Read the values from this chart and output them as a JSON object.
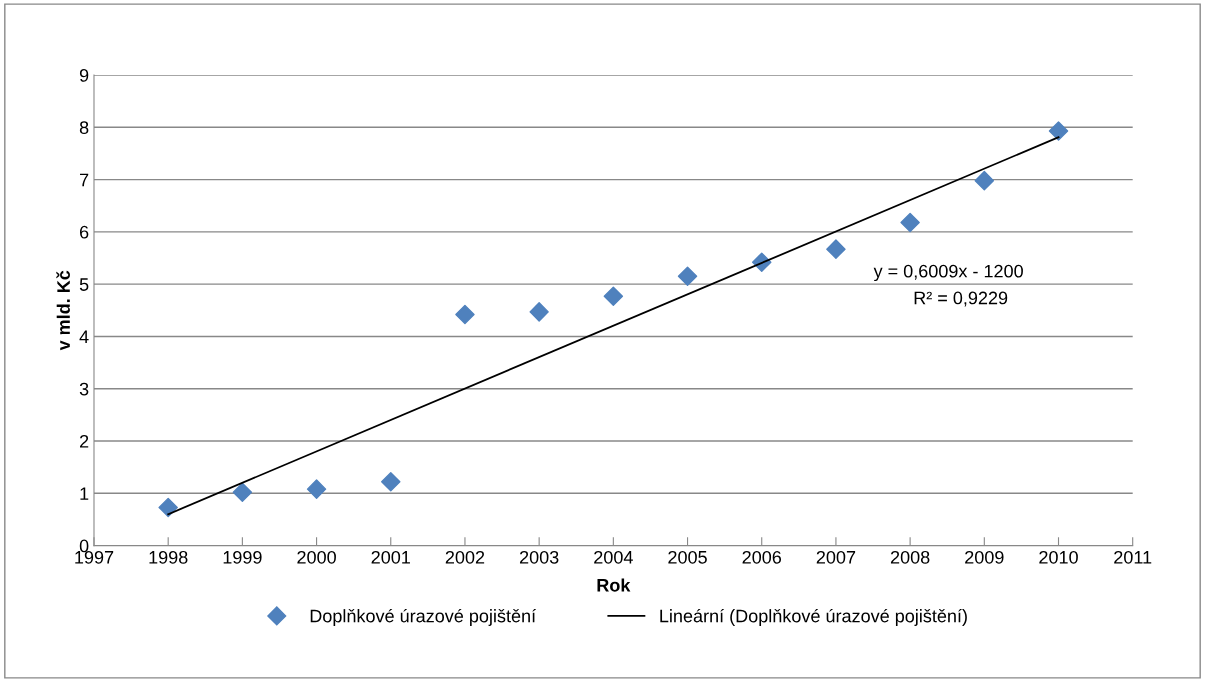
{
  "chart_data": {
    "type": "scatter",
    "xlabel": "Rok",
    "ylabel": "v mld. Kč",
    "series": [
      {
        "name": "Doplňkové úrazové pojištění",
        "marker": "diamond",
        "color": "#4f81bd",
        "x": [
          1998,
          1999,
          2000,
          2001,
          2002,
          2003,
          2004,
          2005,
          2006,
          2007,
          2008,
          2009,
          2010
        ],
        "values": [
          0.73,
          1.02,
          1.08,
          1.22,
          4.42,
          4.47,
          4.77,
          5.15,
          5.42,
          5.67,
          6.18,
          6.98,
          7.93
        ]
      },
      {
        "name": "Lineární (Doplňkové úrazové pojištění)",
        "type": "line",
        "marker": "none",
        "color": "#000000",
        "x": [
          1998,
          2010
        ],
        "values": [
          0.6,
          7.81
        ]
      }
    ],
    "xlim": [
      1997,
      2011
    ],
    "xticks": [
      1997,
      1998,
      1999,
      2000,
      2001,
      2002,
      2003,
      2004,
      2005,
      2006,
      2007,
      2008,
      2009,
      2010,
      2011
    ],
    "ylim": [
      0,
      9
    ],
    "yticks": [
      0,
      1,
      2,
      3,
      4,
      5,
      6,
      7,
      8,
      9
    ],
    "grid": "y",
    "legend": "bottom",
    "annotations": [
      "y = 0,6009x - 1200",
      "R² = 0,9229"
    ]
  }
}
